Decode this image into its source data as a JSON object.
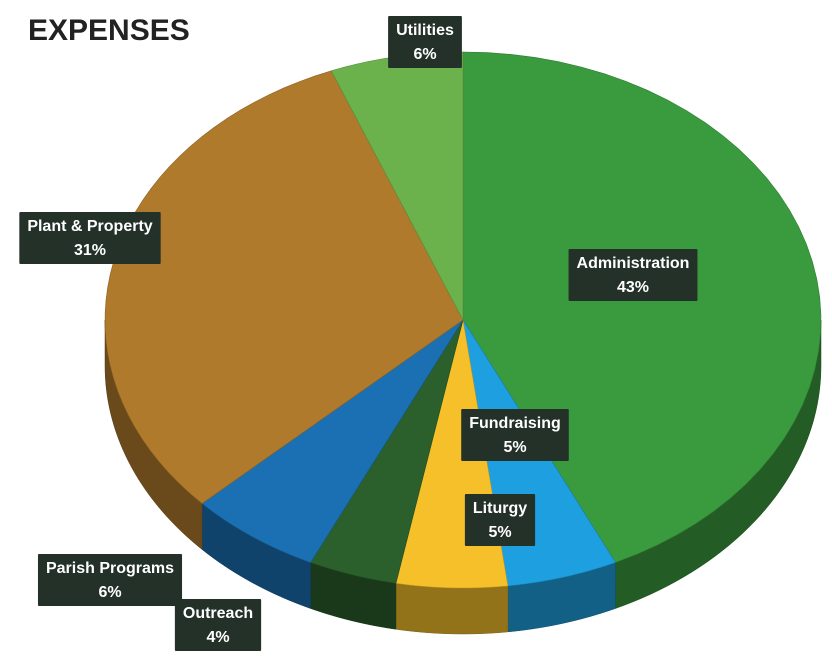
{
  "chart_data": {
    "type": "pie",
    "title": "EXPENSES",
    "categories": [
      "Administration",
      "Fundraising",
      "Liturgy",
      "Outreach",
      "Parish Programs",
      "Plant & Property",
      "Utilities"
    ],
    "values": [
      43,
      5,
      5,
      4,
      6,
      31,
      6
    ],
    "value_labels": [
      "43%",
      "5%",
      "5%",
      "4%",
      "6%",
      "31%",
      "6%"
    ],
    "colors": [
      "#3a9a3e",
      "#1ea0e0",
      "#f5c02a",
      "#2b5f2b",
      "#1a70b2",
      "#b07a2c",
      "#6cb24c"
    ]
  }
}
